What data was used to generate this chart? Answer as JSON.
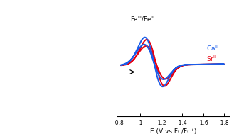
{
  "xlabel": "E (V vs Fc/Fc⁺)",
  "ca_color": "#1a5ce8",
  "sr_color": "#e80010",
  "ca_label": "Ca$^\\mathregular{II}$",
  "sr_label": "Sr$^\\mathregular{II}$",
  "fe_label": "Fe$^\\mathregular{III}$/Fe$^\\mathregular{II}$",
  "background": "#ffffff",
  "xlim_left": -0.78,
  "xlim_right": -1.85,
  "xticks": [
    -0.8,
    -1.0,
    -1.2,
    -1.4,
    -1.6,
    -1.8
  ],
  "xticklabels": [
    "-0.8",
    "-1",
    "-1.2",
    "-1.4",
    "-1.6",
    "-1.8"
  ],
  "figsize": [
    3.29,
    1.89
  ],
  "dpi": 100
}
